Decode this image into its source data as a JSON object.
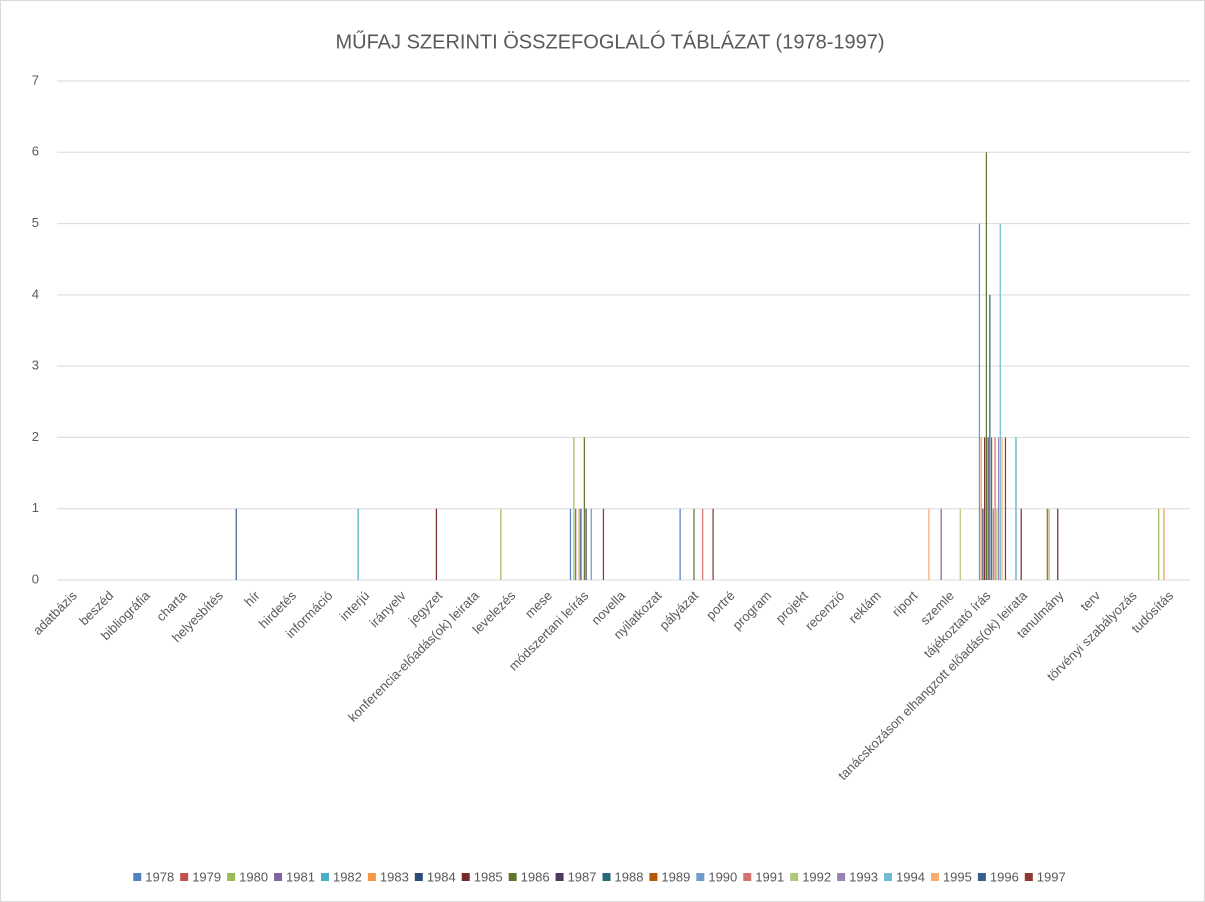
{
  "chart_data": {
    "type": "bar",
    "title": "MŰFAJ SZERINTI ÖSSZEFOGLALÓ TÁBLÁZAT (1978-1997)",
    "categories": [
      "adatbázis",
      "beszéd",
      "bibliográfia",
      "charta",
      "helyesbítés",
      "hír",
      "hirdetés",
      "információ",
      "interjú",
      "irányelv",
      "jegyzet",
      "konferencia-előadás(ok) leirata",
      "levelezés",
      "mese",
      "módszertani leírás",
      "novella",
      "nyilatkozat",
      "pályázat",
      "portré",
      "program",
      "projekt",
      "recenzió",
      "reklám",
      "riport",
      "szemle",
      "tájékoztató írás",
      "tanácskozáson elhangzott előadás(ok) leirata",
      "tanulmány",
      "terv",
      "törvényi szabályozás",
      "tudósítás"
    ],
    "ylim": [
      0,
      7
    ],
    "yticks": [
      0,
      1,
      2,
      3,
      4,
      5,
      6,
      7
    ],
    "grid": true,
    "legend": "bottom",
    "series": [
      {
        "name": "1978",
        "color": "#4f81bd",
        "values": [
          0,
          0,
          0,
          0,
          0,
          0,
          0,
          0,
          0,
          0,
          0,
          0,
          0,
          0,
          1,
          0,
          0,
          1,
          0,
          0,
          0,
          0,
          0,
          0,
          0,
          0,
          0,
          0,
          0,
          0,
          0
        ]
      },
      {
        "name": "1979",
        "color": "#c0504d",
        "values": [
          0,
          0,
          0,
          0,
          0,
          0,
          0,
          0,
          0,
          0,
          0,
          0,
          0,
          0,
          0,
          0,
          0,
          0,
          0,
          0,
          0,
          0,
          0,
          0,
          0,
          0,
          0,
          1,
          0,
          0,
          0
        ]
      },
      {
        "name": "1980",
        "color": "#9bbb59",
        "values": [
          0,
          0,
          0,
          0,
          0,
          0,
          0,
          0,
          0,
          0,
          0,
          0,
          1,
          0,
          2,
          0,
          0,
          0,
          0,
          0,
          0,
          0,
          0,
          0,
          0,
          0,
          0,
          1,
          0,
          0,
          1
        ]
      },
      {
        "name": "1981",
        "color": "#8064a2",
        "values": [
          0,
          0,
          0,
          0,
          0,
          0,
          0,
          0,
          0,
          0,
          0,
          0,
          0,
          0,
          1,
          0,
          0,
          0,
          0,
          0,
          0,
          0,
          0,
          0,
          1,
          0,
          0,
          0,
          0,
          0,
          0
        ]
      },
      {
        "name": "1982",
        "color": "#4bacc6",
        "values": [
          0,
          0,
          0,
          0,
          0,
          0,
          0,
          0,
          1,
          0,
          0,
          0,
          0,
          0,
          0,
          0,
          0,
          0,
          0,
          0,
          0,
          0,
          0,
          0,
          0,
          5,
          2,
          0,
          0,
          0,
          0
        ]
      },
      {
        "name": "1983",
        "color": "#f79646",
        "values": [
          0,
          0,
          0,
          0,
          0,
          0,
          0,
          0,
          0,
          0,
          0,
          0,
          0,
          0,
          1,
          0,
          0,
          0,
          0,
          0,
          0,
          0,
          0,
          0,
          0,
          2,
          0,
          0,
          0,
          0,
          1
        ]
      },
      {
        "name": "1984",
        "color": "#2c4d75",
        "values": [
          0,
          0,
          0,
          0,
          0,
          0,
          0,
          0,
          0,
          0,
          0,
          0,
          0,
          0,
          1,
          0,
          0,
          0,
          0,
          0,
          0,
          0,
          0,
          0,
          0,
          1,
          0,
          0,
          0,
          0,
          0
        ]
      },
      {
        "name": "1985",
        "color": "#772c2a",
        "values": [
          0,
          0,
          0,
          0,
          0,
          0,
          0,
          0,
          0,
          0,
          1,
          0,
          0,
          0,
          0,
          0,
          0,
          0,
          0,
          0,
          0,
          0,
          0,
          0,
          0,
          2,
          1,
          1,
          0,
          0,
          0
        ]
      },
      {
        "name": "1986",
        "color": "#5f7530",
        "values": [
          0,
          0,
          0,
          0,
          0,
          0,
          0,
          0,
          0,
          0,
          0,
          0,
          0,
          0,
          2,
          0,
          0,
          1,
          0,
          0,
          0,
          0,
          0,
          0,
          0,
          6,
          0,
          0,
          0,
          0,
          0
        ]
      },
      {
        "name": "1987",
        "color": "#4d3b62",
        "values": [
          0,
          0,
          0,
          0,
          0,
          0,
          0,
          0,
          0,
          0,
          0,
          0,
          0,
          0,
          1,
          0,
          0,
          0,
          0,
          0,
          0,
          0,
          0,
          0,
          0,
          2,
          0,
          0,
          0,
          0,
          0
        ]
      },
      {
        "name": "1988",
        "color": "#276a7c",
        "values": [
          0,
          0,
          0,
          0,
          0,
          0,
          0,
          0,
          0,
          0,
          0,
          0,
          0,
          0,
          0,
          0,
          0,
          0,
          0,
          0,
          0,
          0,
          0,
          0,
          0,
          4,
          0,
          0,
          0,
          0,
          0
        ]
      },
      {
        "name": "1989",
        "color": "#b65708",
        "values": [
          0,
          0,
          0,
          0,
          0,
          0,
          0,
          0,
          0,
          0,
          0,
          0,
          0,
          0,
          0,
          0,
          0,
          0,
          0,
          0,
          0,
          0,
          0,
          0,
          0,
          2,
          0,
          0,
          0,
          0,
          0
        ]
      },
      {
        "name": "1990",
        "color": "#729aca",
        "values": [
          0,
          0,
          0,
          0,
          0,
          0,
          0,
          0,
          0,
          0,
          0,
          0,
          0,
          0,
          1,
          0,
          0,
          0,
          0,
          0,
          0,
          0,
          0,
          0,
          0,
          1,
          0,
          0,
          0,
          0,
          0
        ]
      },
      {
        "name": "1991",
        "color": "#d4726f",
        "values": [
          0,
          0,
          0,
          0,
          0,
          0,
          0,
          0,
          0,
          0,
          0,
          0,
          0,
          0,
          0,
          0,
          0,
          1,
          0,
          0,
          0,
          0,
          0,
          0,
          0,
          2,
          0,
          0,
          0,
          0,
          0
        ]
      },
      {
        "name": "1992",
        "color": "#afc97a",
        "values": [
          0,
          0,
          0,
          0,
          0,
          0,
          0,
          0,
          0,
          0,
          0,
          0,
          0,
          0,
          0,
          0,
          0,
          0,
          0,
          0,
          0,
          0,
          0,
          0,
          1,
          1,
          0,
          0,
          0,
          0,
          0
        ]
      },
      {
        "name": "1993",
        "color": "#9983b5",
        "values": [
          0,
          0,
          0,
          0,
          0,
          0,
          0,
          0,
          0,
          0,
          0,
          0,
          0,
          0,
          0,
          0,
          0,
          0,
          0,
          0,
          0,
          0,
          0,
          0,
          0,
          2,
          0,
          0,
          0,
          0,
          0
        ]
      },
      {
        "name": "1994",
        "color": "#6fbdd1",
        "values": [
          0,
          0,
          0,
          0,
          0,
          0,
          0,
          0,
          0,
          0,
          0,
          0,
          0,
          0,
          0,
          0,
          0,
          0,
          0,
          0,
          0,
          0,
          0,
          0,
          0,
          5,
          0,
          0,
          0,
          0,
          0
        ]
      },
      {
        "name": "1995",
        "color": "#f9ab6b",
        "values": [
          0,
          0,
          0,
          0,
          0,
          0,
          0,
          0,
          0,
          0,
          0,
          0,
          0,
          0,
          0,
          0,
          0,
          0,
          0,
          0,
          0,
          0,
          0,
          1,
          0,
          2,
          0,
          0,
          0,
          0,
          0
        ]
      },
      {
        "name": "1996",
        "color": "#3a5f8b",
        "values": [
          0,
          0,
          0,
          0,
          1,
          0,
          0,
          0,
          0,
          0,
          0,
          0,
          0,
          0,
          0,
          0,
          0,
          0,
          0,
          0,
          0,
          0,
          0,
          0,
          0,
          0,
          0,
          0,
          0,
          0,
          0
        ]
      },
      {
        "name": "1997",
        "color": "#8f3532",
        "values": [
          0,
          0,
          0,
          0,
          0,
          0,
          0,
          0,
          0,
          0,
          0,
          0,
          0,
          0,
          1,
          0,
          0,
          1,
          0,
          0,
          0,
          0,
          0,
          0,
          0,
          2,
          0,
          0,
          0,
          0,
          0
        ]
      }
    ]
  }
}
